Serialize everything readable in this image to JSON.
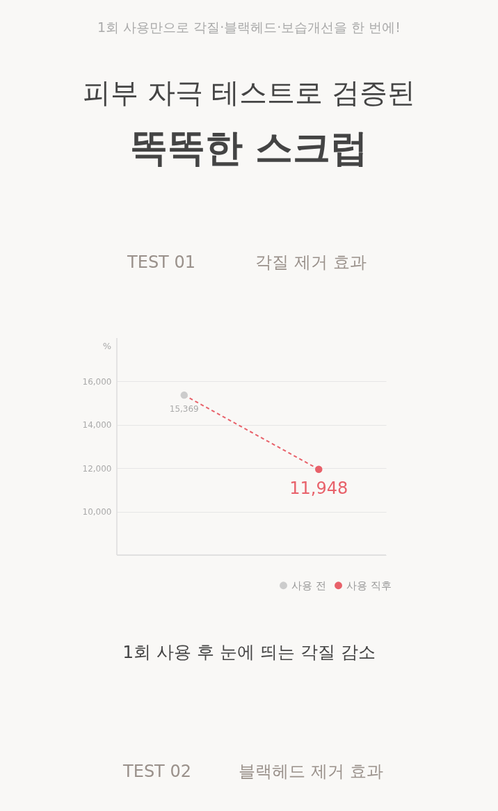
{
  "chart_data": {
    "type": "line",
    "title": [
      "피부 자극 테스트로 검증된",
      "똑똑한 스크럽"
    ],
    "subtitle": "1회 사용만으로 각질·블랙헤드·보습개선을 한 번에!",
    "ylabel": "%",
    "categories": [
      null,
      null
    ],
    "series": [
      {
        "color": "#e8616a",
        "line_style": "dashed",
        "marker": "none",
        "values": [
          15369,
          11948
        ]
      },
      {
        "type": "scatter",
        "name": "사용 전",
        "color": "#cccccc",
        "marker": "circle",
        "values": [
          15369,
          null
        ],
        "value_labels": [
          "15,369",
          null
        ]
      },
      {
        "type": "scatter",
        "name": "사용 직후",
        "color": "#e8616a",
        "marker": "circle",
        "values": [
          null,
          11948
        ],
        "value_labels": [
          null,
          "11,948"
        ]
      }
    ],
    "ylim": [
      8000,
      18000
    ],
    "yticks": [
      {
        "value": 10000,
        "label": "10,000"
      },
      {
        "value": 12000,
        "label": "12,000"
      },
      {
        "value": 14000,
        "label": "14,000"
      },
      {
        "value": 16000,
        "label": "16,000"
      }
    ],
    "grid": "y",
    "tick_labels": "y",
    "legend": "bottom right",
    "annotations": [
      "TEST 01",
      "각질 제거 효과",
      "1회 사용 후 눈에 띄는 각질 감소",
      "TEST 02",
      "블랙헤드 제거 효과"
    ]
  }
}
